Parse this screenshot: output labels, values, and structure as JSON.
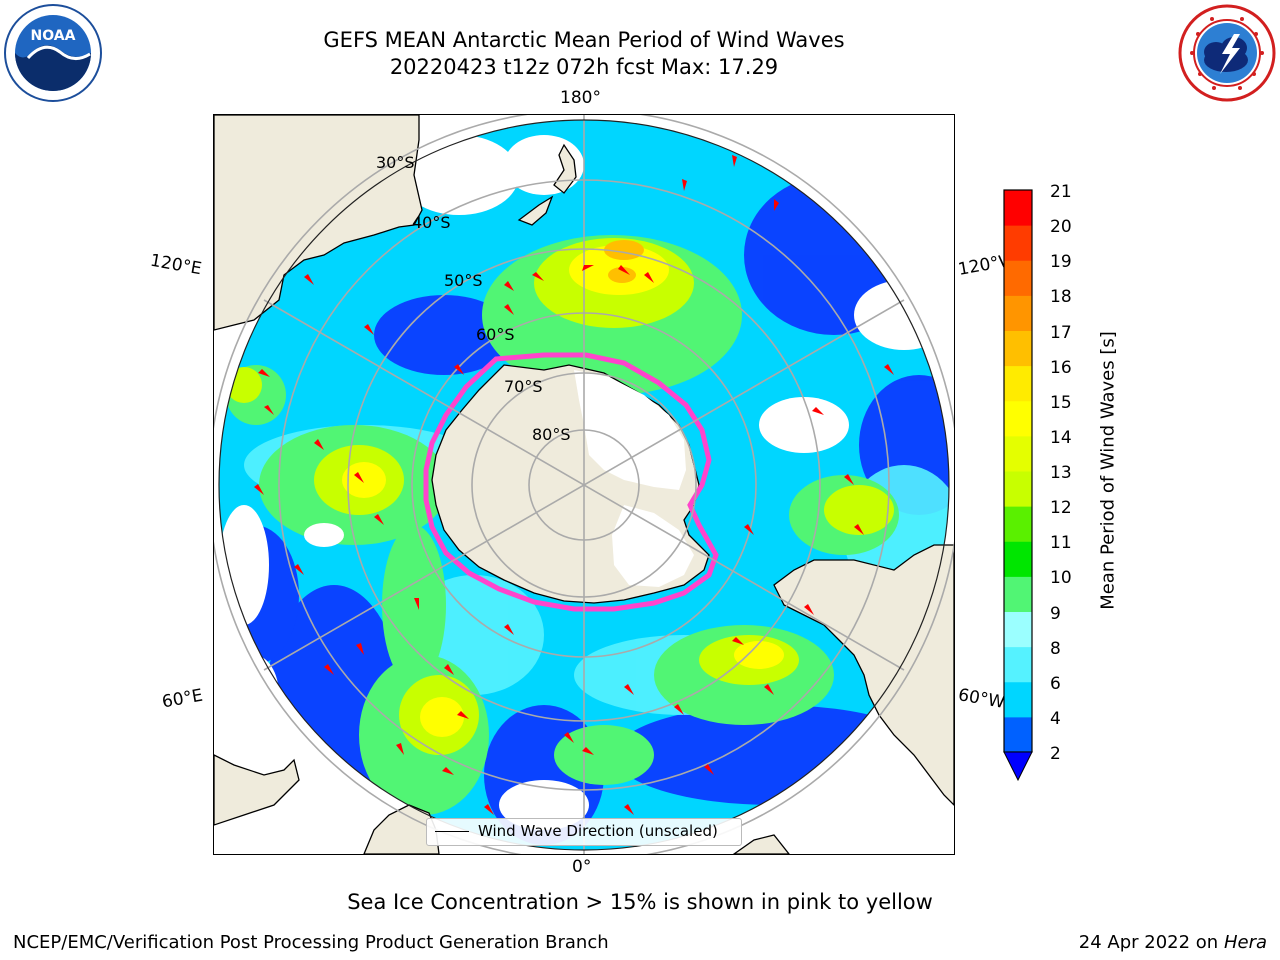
{
  "header": {
    "title_line1": "GEFS MEAN Antarctic Mean Period of Wind Waves",
    "title_line2": "20220423 t12z 072h fcst   Max: 17.29"
  },
  "logos": {
    "left": {
      "name": "NOAA",
      "text": "NOAA"
    },
    "right": {
      "name": "National Weather Service"
    }
  },
  "map": {
    "lon_labels": {
      "top": "180°",
      "bottom": "0°",
      "upper_left": "120°E",
      "upper_right": "120°W",
      "lower_left": "60°E",
      "lower_right": "60°W"
    },
    "lat_labels": [
      "30°S",
      "40°S",
      "50°S",
      "60°S",
      "70°S",
      "80°S"
    ],
    "legend_label": "Wind Wave Direction (unscaled)",
    "colors": {
      "land": "#efebdc",
      "ocean_low": "#0b3cff",
      "ice_edge": "#ff44cc",
      "arrow": "#ff0000"
    }
  },
  "colorbar": {
    "label": "Mean Period of Wind Waves [s]",
    "ticks": [
      "2",
      "4",
      "6",
      "8",
      "9",
      "10",
      "11",
      "12",
      "13",
      "14",
      "15",
      "16",
      "17",
      "18",
      "19",
      "20",
      "21"
    ],
    "colors": [
      "#0061ff",
      "#00d6ff",
      "#55f2ff",
      "#9bffff",
      "#51f574",
      "#00e600",
      "#5af000",
      "#c8ff00",
      "#e4ff00",
      "#ffff00",
      "#ffeb00",
      "#ffbf00",
      "#ff9500",
      "#ff6a00",
      "#ff3c00",
      "#ff0000"
    ],
    "extend_color": "#0000ff"
  },
  "note": "Sea Ice Concentration > 15% is shown in pink to yellow",
  "footer": {
    "left": "NCEP/EMC/Verification Post Processing Product Generation Branch",
    "date": "24 Apr 2022 on ",
    "host": "Hera"
  }
}
